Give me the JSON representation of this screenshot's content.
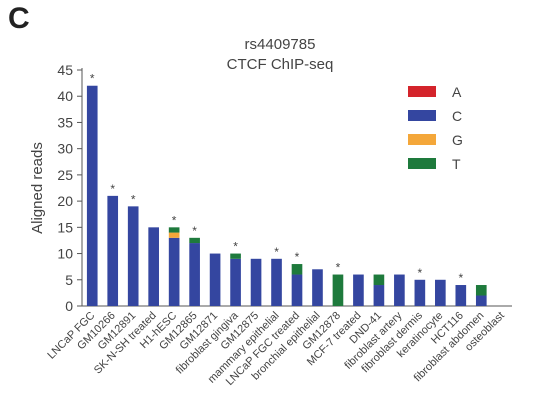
{
  "figure": {
    "panel_label": "C",
    "colors": {
      "A": "#d4242b",
      "C": "#3446a0",
      "G": "#f4a73a",
      "T": "#1e7a3c",
      "axis": "#555555",
      "text": "#444444"
    }
  },
  "chart_data": {
    "type": "bar",
    "stacked": true,
    "title": "rs4409785",
    "subtitle": "CTCF ChIP-seq",
    "xlabel": "",
    "ylabel": "Aligned reads",
    "ylim": [
      0,
      45
    ],
    "yticks": [
      0,
      5,
      10,
      15,
      20,
      25,
      30,
      35,
      40,
      45
    ],
    "grid": false,
    "legend_position": "top-right",
    "categories": [
      "LNCaP FGC",
      "GM10266",
      "GM12891",
      "SK-N-SH treated",
      "H1-hESC",
      "GM12865",
      "GM12871",
      "fibroblast gingiva",
      "GM12875",
      "mammary epithelial",
      "LNCaP FGC treated",
      "bronchial epithelial",
      "GM12878",
      "MCF-7 treated",
      "DND-41",
      "fibroblast artery",
      "fibroblast dermis",
      "keratinocyte",
      "HCT116",
      "fibroblast abdomen",
      "osteoblast"
    ],
    "series": [
      {
        "name": "A",
        "values": [
          0,
          0,
          0,
          0,
          0,
          0,
          0,
          0,
          0,
          0,
          0,
          0,
          0,
          0,
          0,
          0,
          0,
          0,
          0,
          0,
          0
        ]
      },
      {
        "name": "C",
        "values": [
          42,
          21,
          19,
          15,
          13,
          12,
          10,
          9,
          9,
          9,
          6,
          7,
          0,
          6,
          4,
          6,
          5,
          5,
          4,
          2,
          0
        ]
      },
      {
        "name": "G",
        "values": [
          0,
          0,
          0,
          0,
          1,
          0,
          0,
          0,
          0,
          0,
          0,
          0,
          0,
          0,
          0,
          0,
          0,
          0,
          0,
          0,
          0
        ]
      },
      {
        "name": "T",
        "values": [
          0,
          0,
          0,
          0,
          1,
          1,
          0,
          1,
          0,
          0,
          2,
          0,
          6,
          0,
          2,
          0,
          0,
          0,
          0,
          2,
          0
        ]
      }
    ],
    "significant": [
      true,
      true,
      true,
      false,
      true,
      true,
      false,
      true,
      false,
      true,
      true,
      false,
      true,
      false,
      false,
      false,
      true,
      false,
      true,
      false,
      false
    ],
    "significance_marker": "*"
  }
}
